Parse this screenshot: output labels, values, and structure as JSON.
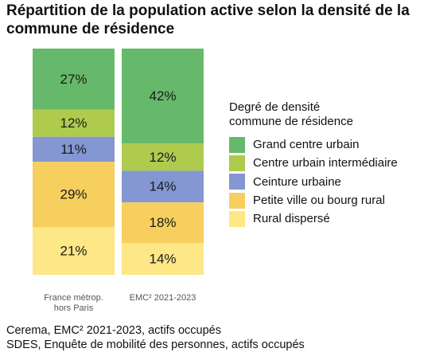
{
  "chart_data": {
    "type": "bar",
    "stacked": true,
    "title": "Répartition de la population active selon la densité de la commune de résidence",
    "categories": [
      "France métrop. hors Paris",
      "EMC² 2021-2023"
    ],
    "category_lines": [
      [
        "France métrop.",
        "hors Paris"
      ],
      [
        "EMC² 2021-2023"
      ]
    ],
    "series": [
      {
        "name": "Grand centre urbain",
        "color": "#66b96a",
        "values": [
          27,
          42
        ],
        "labels": [
          "27%",
          "42%"
        ]
      },
      {
        "name": "Centre urbain intermédiaire",
        "color": "#aecb4e",
        "values": [
          12,
          12
        ],
        "labels": [
          "12%",
          "12%"
        ]
      },
      {
        "name": "Ceinture urbaine",
        "color": "#8497d3",
        "values": [
          11,
          14
        ],
        "labels": [
          "11%",
          "14%"
        ]
      },
      {
        "name": "Petite ville ou bourg rural",
        "color": "#f6cf5e",
        "values": [
          29,
          18
        ],
        "labels": [
          "29%",
          "18%"
        ]
      },
      {
        "name": "Rural dispersé",
        "color": "#fde786",
        "values": [
          21,
          14
        ],
        "labels": [
          "21%",
          "14%"
        ]
      }
    ],
    "ylim": [
      0,
      100
    ],
    "grid": false,
    "legend_position": "right",
    "legend_title": "Degré de densité commune de résidence",
    "legend_title_lines": [
      "Degré de densité",
      "commune de résidence"
    ]
  },
  "source_lines": [
    "Cerema, EMC² 2021-2023, actifs occupés",
    "SDES, Enquête de mobilité des personnes, actifs occupés"
  ]
}
